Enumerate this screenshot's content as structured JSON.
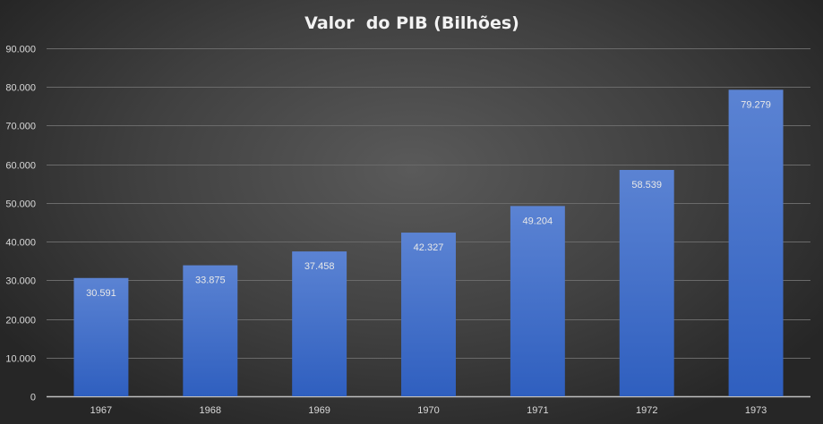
{
  "chart_data": {
    "type": "bar",
    "title": "Valor  do PIB (Bilhões)",
    "xlabel": "",
    "ylabel": "",
    "categories": [
      "1967",
      "1968",
      "1969",
      "1970",
      "1971",
      "1972",
      "1973"
    ],
    "values": [
      30591,
      33875,
      37458,
      42327,
      49204,
      58539,
      79279
    ],
    "data_labels": [
      "30.591",
      "33.875",
      "37.458",
      "42.327",
      "49.204",
      "58.539",
      "79.279"
    ],
    "ylim": [
      0,
      90000
    ],
    "yticks": [
      0,
      10000,
      20000,
      30000,
      40000,
      50000,
      60000,
      70000,
      80000,
      90000
    ],
    "ytick_labels": [
      "0",
      "10.000",
      "20.000",
      "30.000",
      "40.000",
      "50.000",
      "60.000",
      "70.000",
      "80.000",
      "90.000"
    ],
    "grid": true,
    "legend": "none",
    "colors": {
      "bar_top": "#5b83d3",
      "bar_bottom": "#2f5fbf",
      "background": "#404040"
    }
  }
}
